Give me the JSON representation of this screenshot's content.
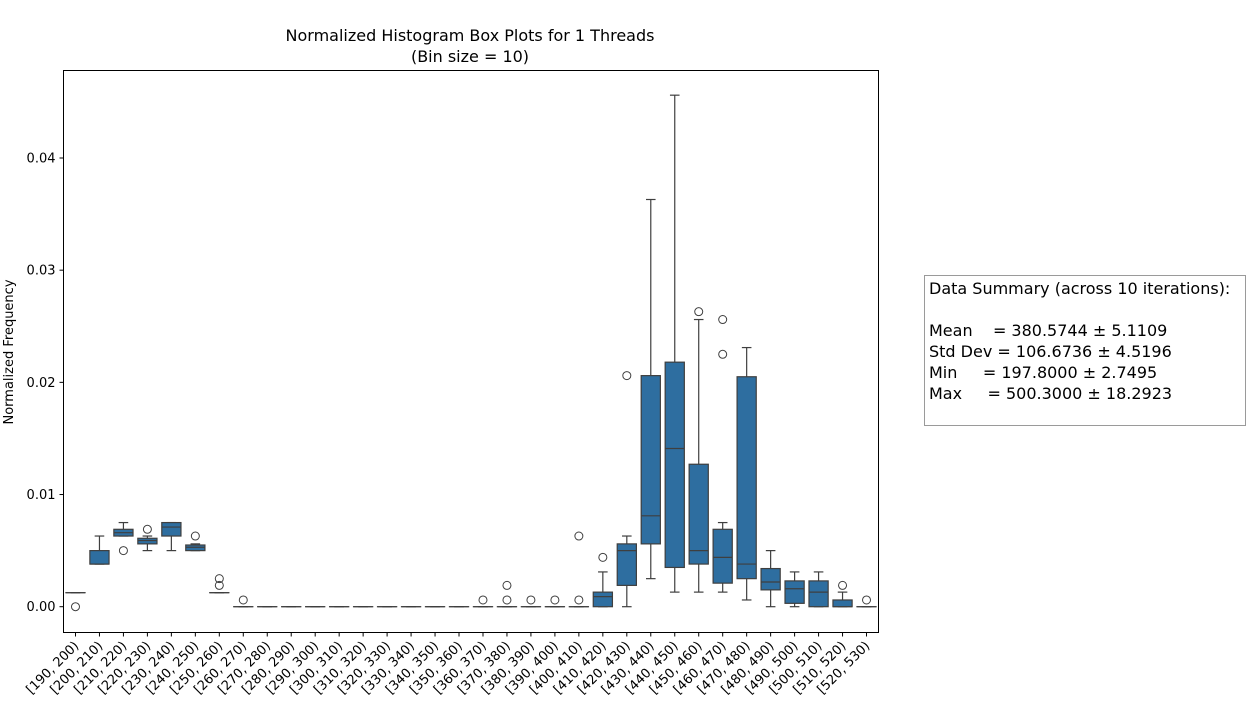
{
  "chart_data": {
    "type": "box",
    "title": "Normalized Histogram Box Plots for 1 Threads",
    "subtitle": "(Bin size = 10)",
    "xlabel": "",
    "ylabel": "Normalized Frequency",
    "ylim": [
      -0.0023,
      0.0478
    ],
    "yticks": [
      "0.00",
      "0.01",
      "0.02",
      "0.03",
      "0.04"
    ],
    "ytick_values": [
      0.0,
      0.01,
      0.02,
      0.03,
      0.04
    ],
    "grid": false,
    "box_color": "#2e6ea0",
    "categories": [
      "[190, 200)",
      "[200, 210)",
      "[210, 220)",
      "[220, 230)",
      "[230, 240)",
      "[240, 250)",
      "[250, 260)",
      "[260, 270)",
      "[270, 280)",
      "[280, 290)",
      "[290, 300)",
      "[300, 310)",
      "[310, 320)",
      "[320, 330)",
      "[330, 340)",
      "[340, 350)",
      "[350, 360)",
      "[360, 370)",
      "[370, 380)",
      "[380, 390)",
      "[390, 400)",
      "[400, 410)",
      "[410, 420)",
      "[420, 430)",
      "[430, 440)",
      "[440, 450)",
      "[450, 460)",
      "[460, 470)",
      "[470, 480)",
      "[480, 490)",
      "[490, 500)",
      "[500, 510)",
      "[510, 520)",
      "[520, 530)"
    ],
    "boxes": [
      {
        "whislo": 0.00125,
        "q1": 0.00125,
        "med": 0.00125,
        "q3": 0.00125,
        "whishi": 0.00125,
        "fliers": [
          0.0
        ]
      },
      {
        "whislo": 0.0038,
        "q1": 0.0038,
        "med": 0.0038,
        "q3": 0.005,
        "whishi": 0.0063,
        "fliers": []
      },
      {
        "whislo": 0.0063,
        "q1": 0.0063,
        "med": 0.0066,
        "q3": 0.0069,
        "whishi": 0.0075,
        "fliers": [
          0.005
        ]
      },
      {
        "whislo": 0.005,
        "q1": 0.0056,
        "med": 0.0059,
        "q3": 0.0061,
        "whishi": 0.0063,
        "fliers": [
          0.0069
        ]
      },
      {
        "whislo": 0.005,
        "q1": 0.0063,
        "med": 0.0071,
        "q3": 0.0075,
        "whishi": 0.0075,
        "fliers": []
      },
      {
        "whislo": 0.005,
        "q1": 0.005,
        "med": 0.0053,
        "q3": 0.0055,
        "whishi": 0.0056,
        "fliers": [
          0.0063
        ]
      },
      {
        "whislo": 0.00125,
        "q1": 0.00125,
        "med": 0.00125,
        "q3": 0.00125,
        "whishi": 0.00125,
        "fliers": [
          0.0019,
          0.0025
        ]
      },
      {
        "whislo": 0.0,
        "q1": 0.0,
        "med": 0.0,
        "q3": 0.0,
        "whishi": 0.0,
        "fliers": [
          0.0006
        ]
      },
      {
        "whislo": 0.0,
        "q1": 0.0,
        "med": 0.0,
        "q3": 0.0,
        "whishi": 0.0,
        "fliers": []
      },
      {
        "whislo": 0.0,
        "q1": 0.0,
        "med": 0.0,
        "q3": 0.0,
        "whishi": 0.0,
        "fliers": []
      },
      {
        "whislo": 0.0,
        "q1": 0.0,
        "med": 0.0,
        "q3": 0.0,
        "whishi": 0.0,
        "fliers": []
      },
      {
        "whislo": 0.0,
        "q1": 0.0,
        "med": 0.0,
        "q3": 0.0,
        "whishi": 0.0,
        "fliers": []
      },
      {
        "whislo": 0.0,
        "q1": 0.0,
        "med": 0.0,
        "q3": 0.0,
        "whishi": 0.0,
        "fliers": []
      },
      {
        "whislo": 0.0,
        "q1": 0.0,
        "med": 0.0,
        "q3": 0.0,
        "whishi": 0.0,
        "fliers": []
      },
      {
        "whislo": 0.0,
        "q1": 0.0,
        "med": 0.0,
        "q3": 0.0,
        "whishi": 0.0,
        "fliers": []
      },
      {
        "whislo": 0.0,
        "q1": 0.0,
        "med": 0.0,
        "q3": 0.0,
        "whishi": 0.0,
        "fliers": []
      },
      {
        "whislo": 0.0,
        "q1": 0.0,
        "med": 0.0,
        "q3": 0.0,
        "whishi": 0.0,
        "fliers": []
      },
      {
        "whislo": 0.0,
        "q1": 0.0,
        "med": 0.0,
        "q3": 0.0,
        "whishi": 0.0,
        "fliers": [
          0.0006
        ]
      },
      {
        "whislo": 0.0,
        "q1": 0.0,
        "med": 0.0,
        "q3": 0.0,
        "whishi": 0.0,
        "fliers": [
          0.0006,
          0.0019
        ]
      },
      {
        "whislo": 0.0,
        "q1": 0.0,
        "med": 0.0,
        "q3": 0.0,
        "whishi": 0.0,
        "fliers": [
          0.0006
        ]
      },
      {
        "whislo": 0.0,
        "q1": 0.0,
        "med": 0.0,
        "q3": 0.0,
        "whishi": 0.0,
        "fliers": [
          0.0006
        ]
      },
      {
        "whislo": 0.0,
        "q1": 0.0,
        "med": 0.0,
        "q3": 0.0,
        "whishi": 0.0,
        "fliers": [
          0.0006,
          0.0063
        ]
      },
      {
        "whislo": 0.0,
        "q1": 0.0,
        "med": 0.0009,
        "q3": 0.0013,
        "whishi": 0.0031,
        "fliers": [
          0.0044
        ]
      },
      {
        "whislo": 0.0,
        "q1": 0.0019,
        "med": 0.005,
        "q3": 0.0056,
        "whishi": 0.0063,
        "fliers": [
          0.0206
        ]
      },
      {
        "whislo": 0.0025,
        "q1": 0.0056,
        "med": 0.0081,
        "q3": 0.0206,
        "whishi": 0.0363,
        "fliers": []
      },
      {
        "whislo": 0.0013,
        "q1": 0.0035,
        "med": 0.0141,
        "q3": 0.0218,
        "whishi": 0.0456,
        "fliers": []
      },
      {
        "whislo": 0.0013,
        "q1": 0.0038,
        "med": 0.005,
        "q3": 0.0127,
        "whishi": 0.0256,
        "fliers": [
          0.0263
        ]
      },
      {
        "whislo": 0.0013,
        "q1": 0.0021,
        "med": 0.0044,
        "q3": 0.0069,
        "whishi": 0.0075,
        "fliers": [
          0.0225,
          0.0256
        ]
      },
      {
        "whislo": 0.0006,
        "q1": 0.0025,
        "med": 0.0038,
        "q3": 0.0205,
        "whishi": 0.0231,
        "fliers": []
      },
      {
        "whislo": 0.0,
        "q1": 0.0015,
        "med": 0.0022,
        "q3": 0.0034,
        "whishi": 0.005,
        "fliers": []
      },
      {
        "whislo": 0.0,
        "q1": 0.0003,
        "med": 0.0016,
        "q3": 0.0023,
        "whishi": 0.0031,
        "fliers": []
      },
      {
        "whislo": 0.0,
        "q1": 0.0,
        "med": 0.0013,
        "q3": 0.0023,
        "whishi": 0.0031,
        "fliers": []
      },
      {
        "whislo": 0.0,
        "q1": 0.0,
        "med": 0.0,
        "q3": 0.0006,
        "whishi": 0.0013,
        "fliers": [
          0.0019
        ]
      },
      {
        "whislo": 0.0,
        "q1": 0.0,
        "med": 0.0,
        "q3": 0.0,
        "whishi": 0.0,
        "fliers": [
          0.0006
        ]
      }
    ]
  },
  "summary": {
    "title": "Data Summary (across 10 iterations):",
    "lines": [
      "Mean    = 380.5744 ± 5.1109",
      "Std Dev = 106.6736 ± 4.5196",
      "Min     = 197.8000 ± 2.7495",
      "Max     = 500.3000 ± 18.2923"
    ]
  }
}
